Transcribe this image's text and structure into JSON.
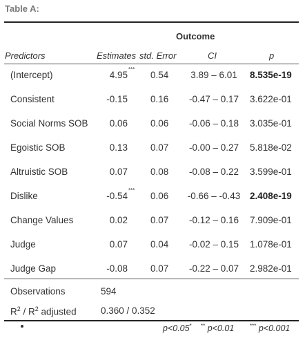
{
  "caption": "Table A:",
  "outcome_header": "Outcome",
  "columns": {
    "predictors": "Predictors",
    "estimates": "Estimates",
    "std_error": "std. Error",
    "ci": "CI",
    "p": "p"
  },
  "rows": [
    {
      "predictor": "(Intercept)",
      "estimate": "4.95",
      "stars": "***",
      "se": "0.54",
      "ci": "3.89 – 6.01",
      "p": "8.535e-19",
      "p_bold": true
    },
    {
      "predictor": "Consistent",
      "estimate": "-0.15",
      "stars": "",
      "se": "0.16",
      "ci": "-0.47 – 0.17",
      "p": "3.622e-01",
      "p_bold": false
    },
    {
      "predictor": "Social Norms SOB",
      "estimate": "0.06",
      "stars": "",
      "se": "0.06",
      "ci": "-0.06 – 0.18",
      "p": "3.035e-01",
      "p_bold": false
    },
    {
      "predictor": "Egoistic SOB",
      "estimate": "0.13",
      "stars": "",
      "se": "0.07",
      "ci": "-0.00 – 0.27",
      "p": "5.818e-02",
      "p_bold": false
    },
    {
      "predictor": "Altruistic SOB",
      "estimate": "0.07",
      "stars": "",
      "se": "0.08",
      "ci": "-0.08 – 0.22",
      "p": "3.599e-01",
      "p_bold": false
    },
    {
      "predictor": "Dislike",
      "estimate": "-0.54",
      "stars": "***",
      "se": "0.06",
      "ci": "-0.66 – -0.43",
      "p": "2.408e-19",
      "p_bold": true
    },
    {
      "predictor": "Change Values",
      "estimate": "0.02",
      "stars": "",
      "se": "0.07",
      "ci": "-0.12 – 0.16",
      "p": "7.909e-01",
      "p_bold": false
    },
    {
      "predictor": "Judge",
      "estimate": "0.07",
      "stars": "",
      "se": "0.04",
      "ci": "-0.02 – 0.15",
      "p": "1.078e-01",
      "p_bold": false
    },
    {
      "predictor": "Judge Gap",
      "estimate": "-0.08",
      "stars": "",
      "se": "0.07",
      "ci": "-0.22 – 0.07",
      "p": "2.982e-01",
      "p_bold": false
    }
  ],
  "observations": {
    "label": "Observations",
    "value": "594"
  },
  "r2": {
    "label_r": "R",
    "sup1": "2",
    "label_mid": " / R",
    "sup2": "2",
    "label_tail": " adjusted",
    "value": "0.360 / 0.352"
  },
  "footnotes": {
    "f1": {
      "text": "p<0.05",
      "stars": "*"
    },
    "f2": {
      "stars": "**",
      "text": "p<0.01"
    },
    "f3": {
      "stars": "***",
      "text": "p<0.001"
    }
  }
}
